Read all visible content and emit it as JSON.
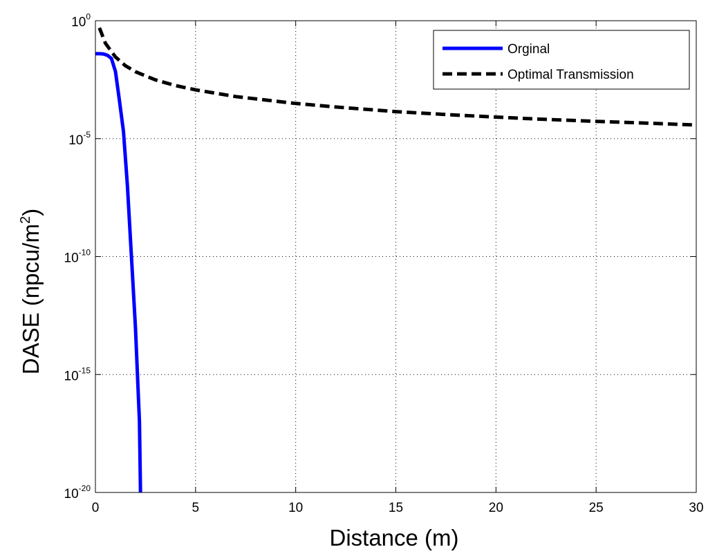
{
  "chart_data": {
    "type": "line",
    "xlabel": "Distance (m)",
    "ylabel": "DASE (npcu/m",
    "ylabel_sup": "2",
    "ylabel_end": ")",
    "xlim": [
      0,
      30
    ],
    "ylim_log10": [
      -20,
      0
    ],
    "y_scale": "log",
    "grid": true,
    "legend_position": "top-right",
    "x_ticks": [
      "0",
      "5",
      "10",
      "15",
      "20",
      "25",
      "30"
    ],
    "y_ticks": [
      {
        "base": "10",
        "exp": "0"
      },
      {
        "base": "10",
        "exp": "-5"
      },
      {
        "base": "10",
        "exp": "-10"
      },
      {
        "base": "10",
        "exp": "-15"
      },
      {
        "base": "10",
        "exp": "-20"
      }
    ],
    "series": [
      {
        "name": "Orginal",
        "color": "#0000ff",
        "style": "solid",
        "x": [
          0.0,
          0.2,
          0.4,
          0.6,
          0.8,
          1.0,
          1.2,
          1.4,
          1.6,
          1.8,
          2.0,
          2.2,
          2.25
        ],
        "y": [
          0.04,
          0.04,
          0.039,
          0.034,
          0.025,
          0.007,
          0.0004,
          2e-05,
          1e-07,
          1e-10,
          1e-13,
          1e-17,
          1e-20
        ]
      },
      {
        "name": "Optimal Transmission",
        "color": "#000000",
        "style": "dashed",
        "x": [
          0.2,
          0.5,
          1.0,
          1.5,
          2,
          3,
          4,
          5,
          7,
          10,
          12,
          15,
          18,
          20,
          22,
          25,
          28,
          30
        ],
        "y": [
          0.5,
          0.11,
          0.029,
          0.0123,
          0.0069,
          0.0031,
          0.00178,
          0.00117,
          0.00061,
          0.00031,
          0.00022,
          0.00014,
          0.0001,
          8.2e-05,
          6.8e-05,
          5.4e-05,
          4.4e-05,
          3.8e-05
        ]
      }
    ]
  }
}
